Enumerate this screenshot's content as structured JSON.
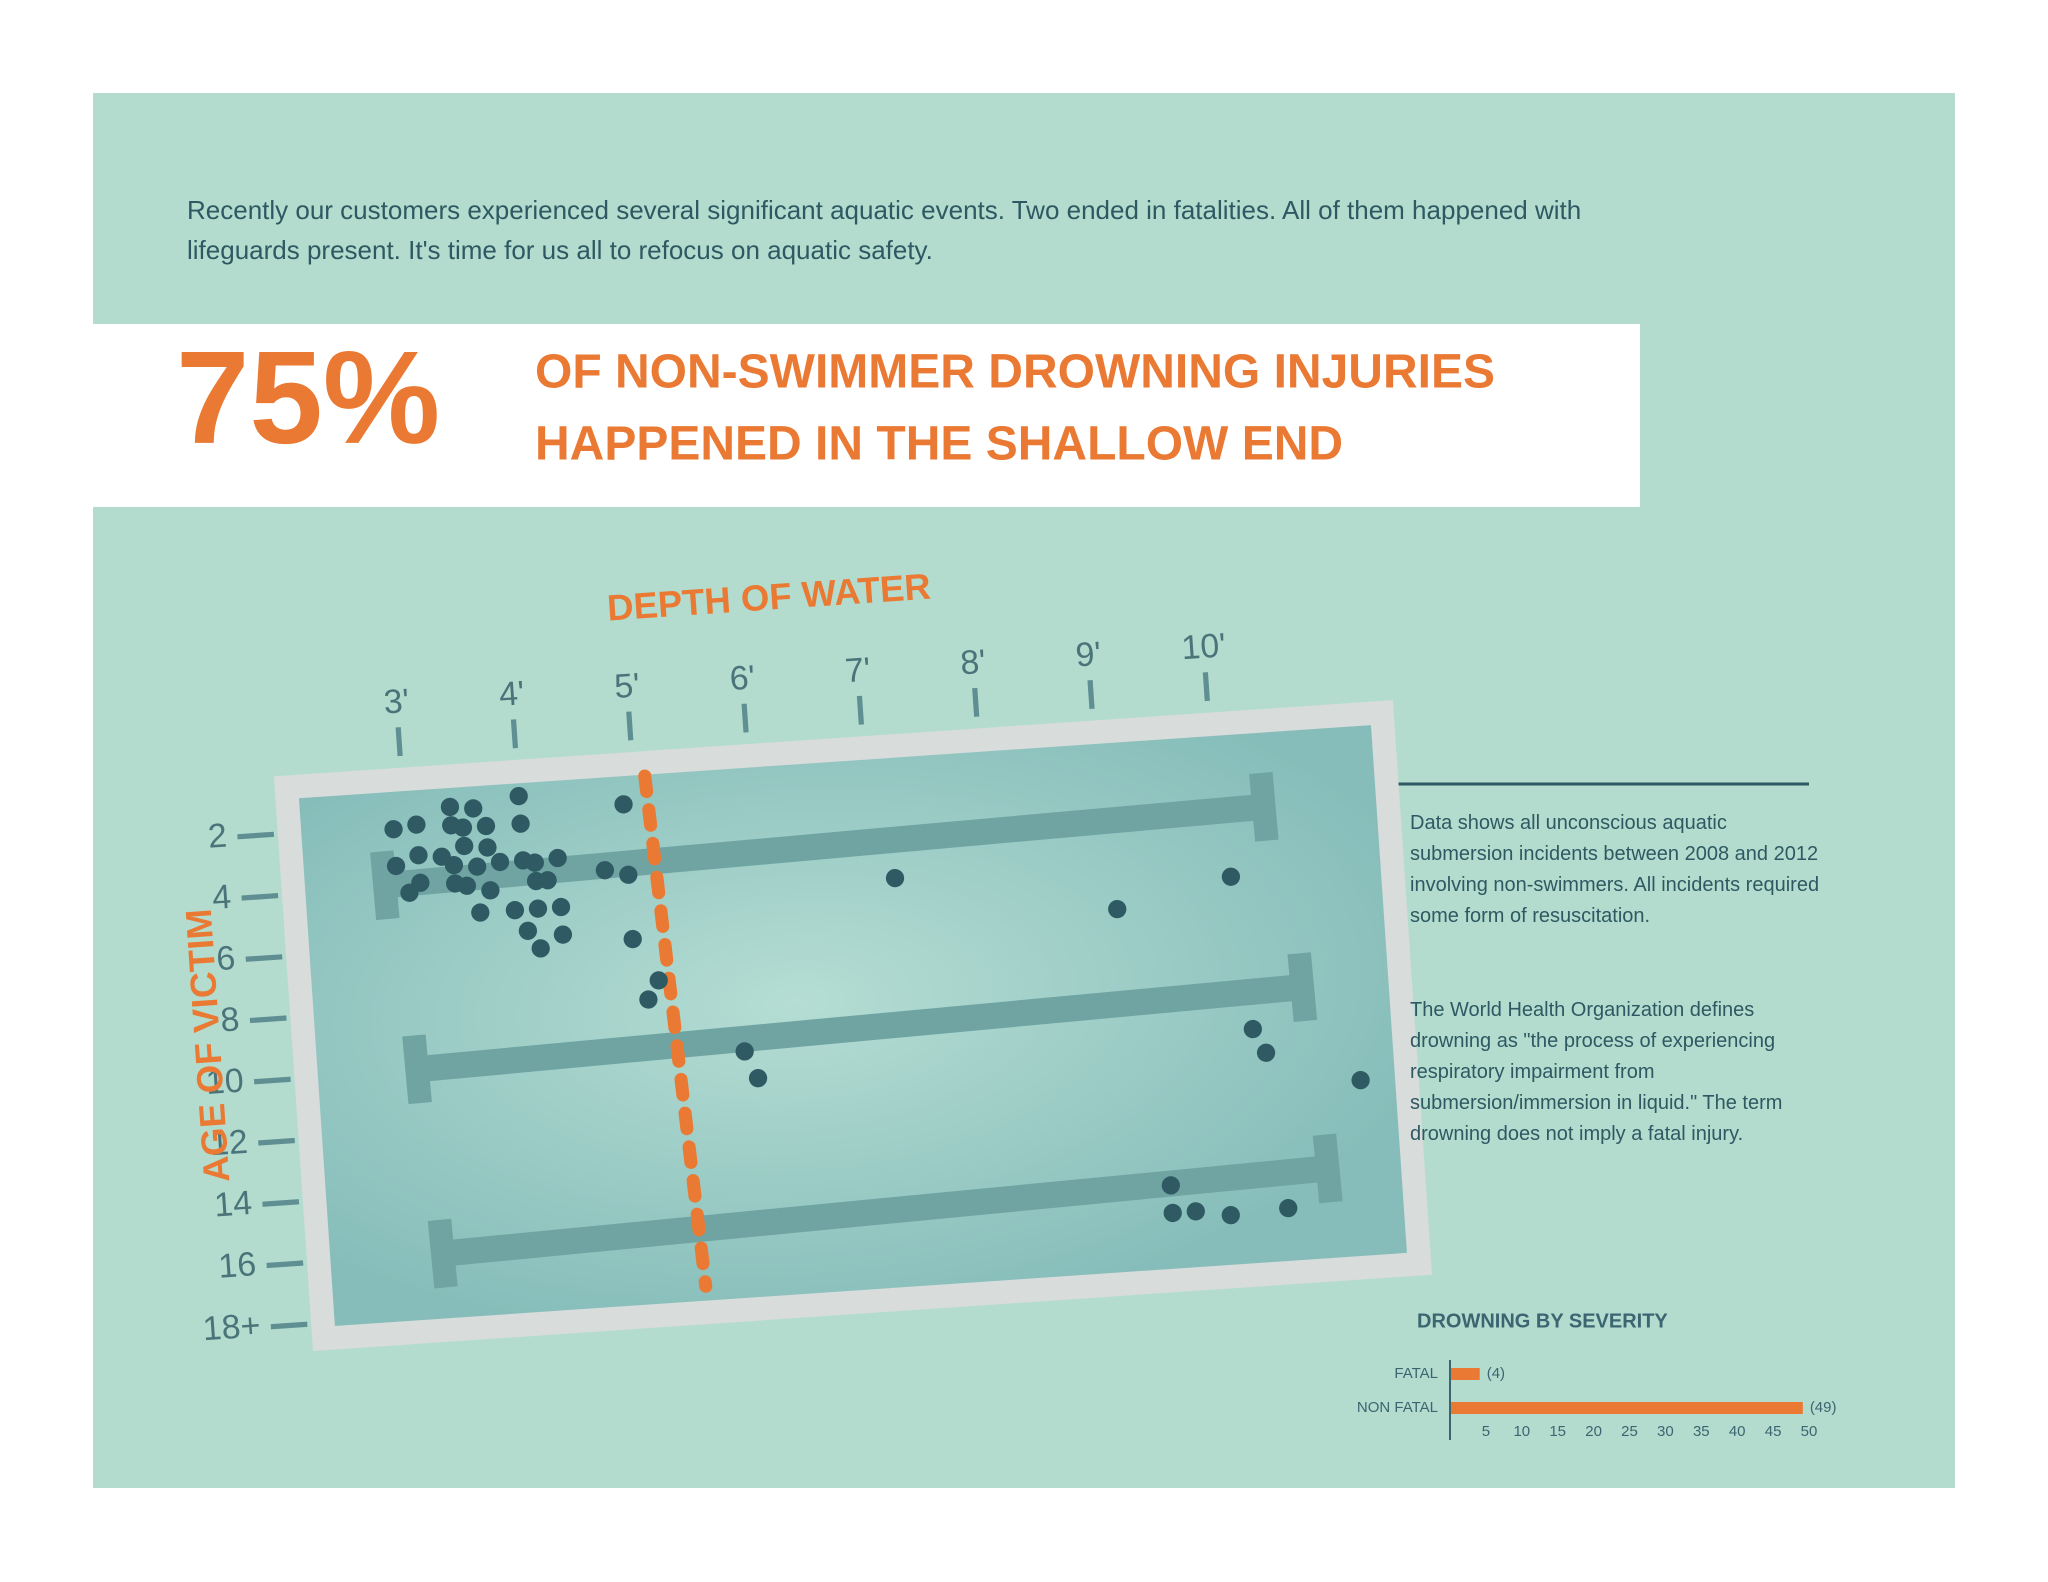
{
  "intro": "Recently our customers experienced several significant aquatic events. Two ended in fatalities. All of them happened with lifeguards present. It's time for us all to refocus on aquatic safety.",
  "headline": {
    "stat": "75%",
    "lines": [
      "OF NON-SWIMMER DROWNING INJURIES",
      "HAPPENED IN THE SHALLOW END"
    ]
  },
  "notes": [
    "Data shows all unconscious aquatic submersion incidents between 2008 and 2012 involving non-swimmers. All incidents required some form of resuscitation.",
    "The World Health Organization defines drowning as \"the process of experiencing respiratory impairment from submersion/immersion in liquid.\" The term drowning does not imply a fatal injury."
  ],
  "chart_data": [
    {
      "type": "scatter",
      "x_label": "DEPTH OF WATER",
      "y_label": "AGE OF VICTIM",
      "color": "#2f5a63",
      "threshold_color": "#ea7a33",
      "threshold_x": 5.1,
      "x": [
        2.9,
        3.1,
        3.4,
        3.5,
        3.7,
        3.4,
        3.6,
        2.9,
        3.1,
        3.3,
        3.5,
        3.7,
        3.4,
        3.6,
        3.8,
        3.0,
        3.1,
        3.4,
        3.5,
        3.7,
        3.6,
        4.0,
        4.0,
        4.0,
        4.1,
        4.3,
        4.1,
        4.2,
        3.9,
        4.1,
        4.3,
        4.0,
        4.3,
        4.1,
        4.9,
        4.7,
        4.9,
        4.9,
        5.1,
        5.0,
        7.2,
        9.1,
        10.1,
        5.8,
        5.9,
        10.2,
        10.3,
        11.1,
        9.4,
        9.4,
        9.6,
        9.9,
        10.4
      ],
      "y": [
        2.1,
        2.0,
        2.1,
        2.2,
        2.2,
        1.5,
        1.6,
        3.3,
        3.0,
        3.1,
        2.8,
        2.9,
        3.4,
        3.5,
        3.4,
        4.2,
        3.9,
        4.0,
        4.1,
        4.3,
        5.0,
        1.3,
        2.2,
        3.4,
        3.5,
        3.4,
        4.1,
        4.1,
        5.0,
        5.0,
        5.0,
        5.7,
        5.9,
        6.3,
        1.8,
        3.9,
        4.1,
        6.2,
        7.6,
        8.2,
        4.8,
        6.3,
        5.5,
        10.1,
        11.0,
        10.5,
        11.3,
        12.4,
        15.4,
        16.3,
        16.3,
        16.5,
        16.4
      ],
      "xlim": [
        2,
        11.5
      ],
      "ylim": [
        0.5,
        18.5
      ],
      "xticks": [
        {
          "value": 3,
          "label": "3'"
        },
        {
          "value": 4,
          "label": "4'"
        },
        {
          "value": 5,
          "label": "5'"
        },
        {
          "value": 6,
          "label": "6'"
        },
        {
          "value": 7,
          "label": "7'"
        },
        {
          "value": 8,
          "label": "8'"
        },
        {
          "value": 9,
          "label": "9'"
        },
        {
          "value": 10,
          "label": "10'"
        }
      ],
      "yticks": [
        2,
        4,
        6,
        8,
        10,
        12,
        14,
        16,
        {
          "value": 18,
          "label": "18+"
        }
      ]
    },
    {
      "type": "bar",
      "orientation": "horizontal",
      "title": "DROWNING BY SEVERITY",
      "categories": [
        "FATAL",
        "NON FATAL"
      ],
      "values": [
        4,
        49
      ],
      "value_labels": [
        "(4)",
        "(49)"
      ],
      "color": "#ea7a33",
      "xlim": [
        0,
        50
      ],
      "xticks": [
        5,
        10,
        15,
        20,
        25,
        30,
        35,
        40,
        45,
        50
      ]
    }
  ]
}
